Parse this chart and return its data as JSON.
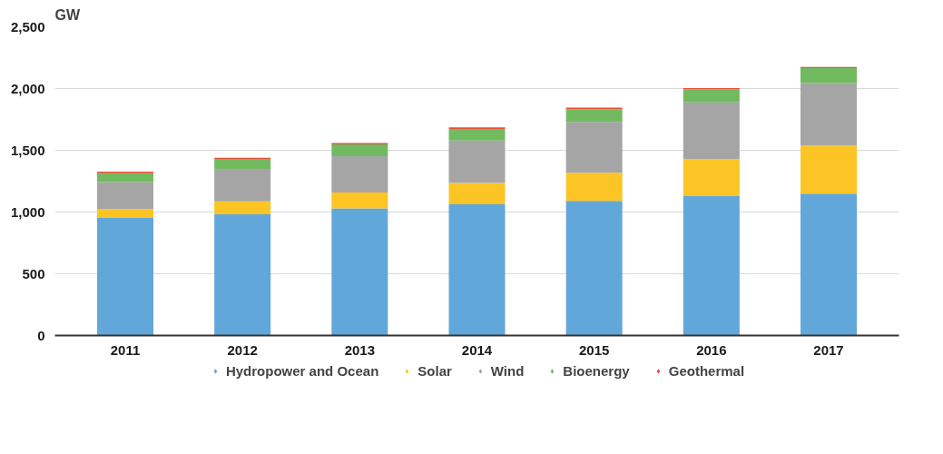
{
  "chart_data": {
    "type": "bar",
    "stacked": true,
    "ylabel": "GW",
    "categories": [
      "2011",
      "2012",
      "2013",
      "2014",
      "2015",
      "2016",
      "2017"
    ],
    "series": [
      {
        "name": "Hydropower and Ocean",
        "color": "#62a7d9",
        "values": [
          952,
          981,
          1029,
          1063,
          1090,
          1128,
          1148
        ]
      },
      {
        "name": "Solar",
        "color": "#fcc525",
        "values": [
          72,
          106,
          130,
          172,
          228,
          300,
          390
        ]
      },
      {
        "name": "Wind",
        "color": "#a5a5a5",
        "values": [
          218,
          263,
          294,
          344,
          411,
          460,
          506
        ]
      },
      {
        "name": "Bioenergy",
        "color": "#72ba5f",
        "values": [
          73,
          81,
          95,
          94,
          103,
          106,
          121
        ]
      },
      {
        "name": "Geothermal",
        "color": "#e8503a",
        "values": [
          12,
          9,
          11,
          13,
          13,
          9,
          9
        ]
      }
    ],
    "ylim": [
      0,
      2500
    ],
    "yticks": [
      {
        "value": 0,
        "label": "0"
      },
      {
        "value": 500,
        "label": "500"
      },
      {
        "value": 1000,
        "label": "1,000"
      },
      {
        "value": 1500,
        "label": "1,500"
      },
      {
        "value": 2000,
        "label": "2,000"
      },
      {
        "value": 2500,
        "label": "2,500"
      }
    ],
    "grid": "y",
    "legend": "bottom"
  }
}
